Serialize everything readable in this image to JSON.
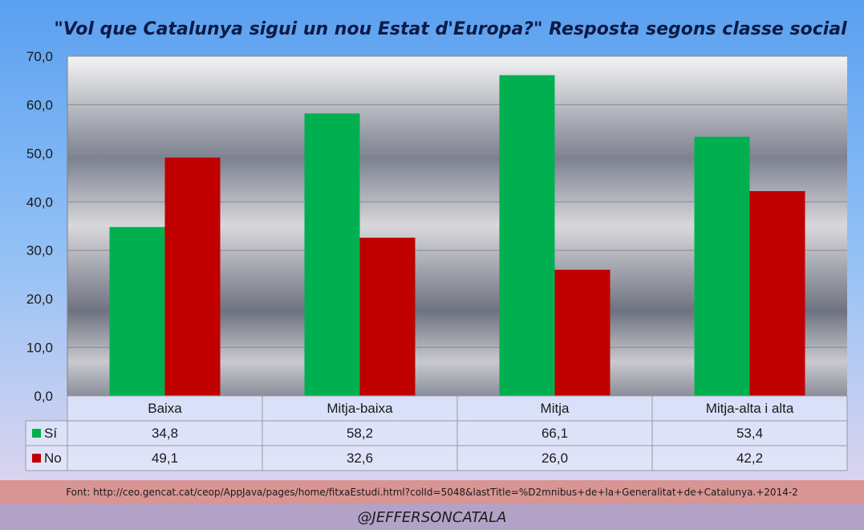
{
  "title": "\"Vol que Catalunya sigui un nou Estat d'Europa?\" Resposta segons classe social",
  "source": "Font: http://ceo.gencat.cat/ceop/AppJava/pages/home/fitxaEstudi.html?colId=5048&lastTitle=%D2mnibus+de+la+Generalitat+de+Catalunya.+2014-2",
  "handle": "@JEFFERSONCATALA",
  "colors": {
    "si": "#00b050",
    "no": "#c00000",
    "grid": "#8a8a8a"
  },
  "chart_data": {
    "type": "bar",
    "title": "\"Vol que Catalunya sigui un nou Estat d'Europa?\" Resposta segons classe social",
    "categories": [
      "Baixa",
      "Mitja-baixa",
      "Mitja",
      "Mitja-alta i alta"
    ],
    "series": [
      {
        "name": "Sí",
        "values": [
          34.8,
          58.2,
          66.1,
          53.4
        ],
        "labels": [
          "34,8",
          "58,2",
          "66,1",
          "53,4"
        ]
      },
      {
        "name": "No",
        "values": [
          49.1,
          32.6,
          26.0,
          42.2
        ],
        "labels": [
          "49,1",
          "32,6",
          "26,0",
          "42,2"
        ]
      }
    ],
    "ylim": [
      0,
      70
    ],
    "yticks": [
      0,
      10,
      20,
      30,
      40,
      50,
      60,
      70
    ],
    "ytick_labels": [
      "0,0",
      "10,0",
      "20,0",
      "30,0",
      "40,0",
      "50,0",
      "60,0",
      "70,0"
    ],
    "grid": true,
    "data_table": true
  }
}
